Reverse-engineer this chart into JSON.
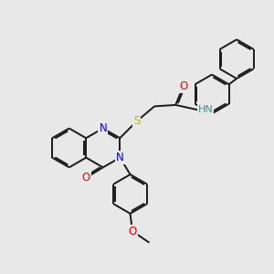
{
  "bg_color": "#e8e8e8",
  "bond_color": "#1a1a1a",
  "bond_width": 1.4,
  "N_color": "#0000ee",
  "O_color": "#ee0000",
  "S_color": "#bbbb00",
  "HN_color": "#4a9090",
  "font_size": 8.5,
  "fig_size": [
    3.0,
    3.0
  ],
  "dpi": 100,
  "xlim": [
    0,
    10
  ],
  "ylim": [
    0,
    10
  ]
}
